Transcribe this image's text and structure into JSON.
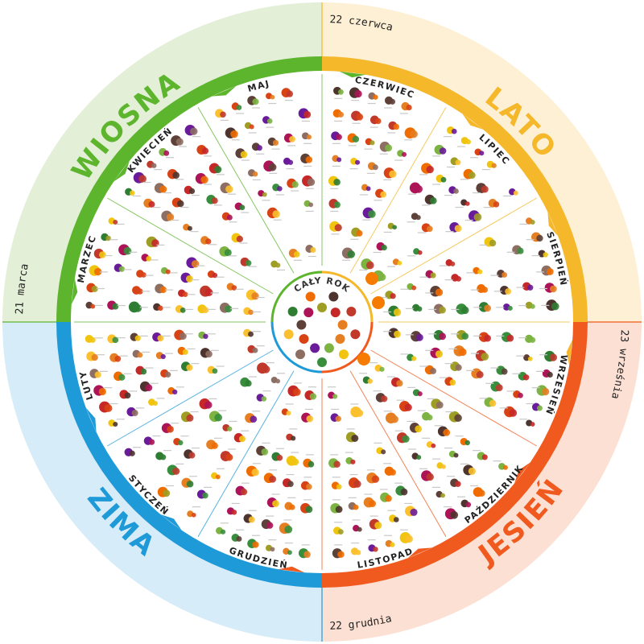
{
  "colors": {
    "spring": "#5db52e",
    "spring_light": "#e3efd6",
    "summer": "#f4b82a",
    "summer_light": "#fdf0d5",
    "autumn": "#f05a1e",
    "autumn_light": "#fde0d4",
    "winter": "#1f9ad8",
    "winter_light": "#d6ecf8"
  },
  "seasons": [
    {
      "key": "spring",
      "label": "WIOSNA"
    },
    {
      "key": "summer",
      "label": "LATO"
    },
    {
      "key": "autumn",
      "label": "JESIEŃ"
    },
    {
      "key": "winter",
      "label": "ZIMA"
    }
  ],
  "months": [
    {
      "label": "MARZEC",
      "season": "spring"
    },
    {
      "label": "KWIECIEŃ",
      "season": "spring"
    },
    {
      "label": "MAJ",
      "season": "spring"
    },
    {
      "label": "CZERWIEC",
      "season": "spring"
    },
    {
      "label": "LIPIEC",
      "season": "summer"
    },
    {
      "label": "SIERPIEŃ",
      "season": "summer"
    },
    {
      "label": "WRZESIEŃ",
      "season": "summer"
    },
    {
      "label": "PAŹDZIERNIK",
      "season": "autumn"
    },
    {
      "label": "LISTOPAD",
      "season": "autumn"
    },
    {
      "label": "GRUDZIEŃ",
      "season": "autumn"
    },
    {
      "label": "STYCZEŃ",
      "season": "winter"
    },
    {
      "label": "LUTY",
      "season": "winter"
    }
  ],
  "dates": [
    {
      "label": "21 marca"
    },
    {
      "label": "22 czerwca"
    },
    {
      "label": "23 września"
    },
    {
      "label": "22 grudnia"
    }
  ],
  "center": {
    "label": "CAŁY ROK"
  },
  "produce_palette": [
    "#c0392b",
    "#e67e22",
    "#f1c40f",
    "#7cb342",
    "#388e3c",
    "#6a1b9a",
    "#8d6e63",
    "#d84315",
    "#fbc02d",
    "#5d4037",
    "#2e7d32",
    "#ad1457",
    "#ef6c00",
    "#9e9d24",
    "#4e342e",
    "#c62828"
  ]
}
